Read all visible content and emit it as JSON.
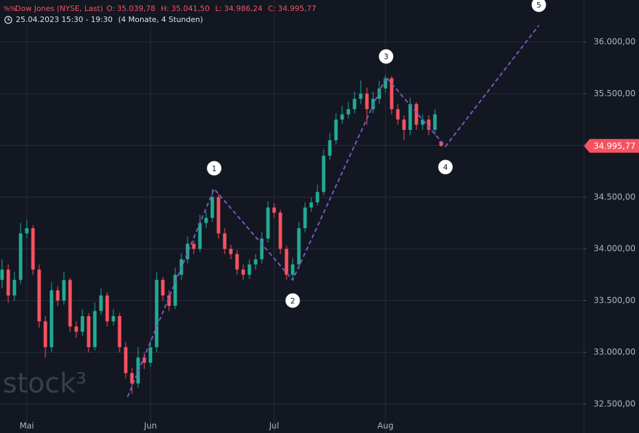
{
  "header": {
    "symbol": "Dow Jones (NYSE, Last)",
    "ohlc": [
      {
        "key": "O:",
        "value": "35.039,78"
      },
      {
        "key": "H:",
        "value": "35.041,50"
      },
      {
        "key": "L:",
        "value": "34.986,24"
      },
      {
        "key": "C:",
        "value": "34.995,77"
      }
    ],
    "date_range": "25.04.2023 15:30 - 19:30",
    "span": "(4 Monate, 4 Stunden)"
  },
  "watermark": "stock³",
  "chart_data": {
    "type": "candlestick",
    "up_color": "#22ab94",
    "down_color": "#f7525f",
    "grid": true,
    "categories": [
      null,
      null,
      null,
      null,
      "Mai",
      null,
      null,
      null,
      null,
      null,
      null,
      null,
      null,
      null,
      null,
      null,
      null,
      null,
      null,
      null,
      null,
      null,
      null,
      null,
      "Jun",
      null,
      null,
      null,
      null,
      null,
      null,
      null,
      null,
      null,
      null,
      null,
      null,
      null,
      null,
      null,
      null,
      null,
      null,
      null,
      "Jul",
      null,
      null,
      null,
      null,
      null,
      null,
      null,
      null,
      null,
      null,
      null,
      null,
      null,
      null,
      null,
      null,
      null,
      "Aug",
      null,
      null,
      null,
      null,
      null,
      null,
      null,
      null,
      null
    ],
    "open": [
      33700,
      33800,
      33550,
      33700,
      34150,
      34200,
      33800,
      33300,
      33050,
      33600,
      33500,
      33700,
      33250,
      33200,
      33350,
      33050,
      33400,
      33550,
      33300,
      33350,
      33050,
      32800,
      32700,
      32950,
      32900,
      33050,
      33700,
      33550,
      33450,
      33750,
      33900,
      34050,
      34000,
      34250,
      34300,
      34500,
      34150,
      34000,
      33950,
      33800,
      33750,
      33850,
      33900,
      34100,
      34400,
      34350,
      34000,
      33750,
      33850,
      34200,
      34400,
      34450,
      34550,
      34900,
      35050,
      35250,
      35300,
      35350,
      35450,
      35500,
      35350,
      35450,
      35550,
      35650,
      35350,
      35250,
      35150,
      35400,
      35200,
      35250,
      35150,
      35039.78
    ],
    "high": [
      33900,
      33850,
      33780,
      34250,
      34280,
      34230,
      33850,
      33350,
      33680,
      33640,
      33780,
      33720,
      33300,
      33420,
      33380,
      33480,
      33620,
      33580,
      33420,
      33380,
      33100,
      32850,
      33050,
      33000,
      33120,
      33780,
      33730,
      33600,
      33820,
      33960,
      34120,
      34080,
      34330,
      34360,
      34580,
      34530,
      34200,
      34040,
      33990,
      33850,
      33900,
      33950,
      34160,
      34460,
      34440,
      34380,
      34030,
      33910,
      34260,
      34450,
      34500,
      34620,
      34960,
      35120,
      35310,
      35380,
      35420,
      35520,
      35630,
      35560,
      35520,
      35620,
      35680,
      35670,
      35400,
      35290,
      35460,
      35420,
      35300,
      35290,
      35350,
      35041.5
    ],
    "low": [
      33620,
      33480,
      33500,
      33660,
      34100,
      33750,
      33240,
      32950,
      33000,
      33450,
      33460,
      33200,
      33140,
      33160,
      33000,
      33020,
      33360,
      33250,
      33260,
      33000,
      32750,
      32600,
      32660,
      32840,
      32860,
      33000,
      33500,
      33400,
      33420,
      33700,
      33860,
      33950,
      33970,
      34200,
      34260,
      34100,
      33950,
      33900,
      33750,
      33700,
      33710,
      33800,
      33860,
      34060,
      34300,
      33950,
      33700,
      33720,
      33810,
      34160,
      34360,
      34420,
      34520,
      34860,
      35010,
      35210,
      35260,
      35310,
      35400,
      35200,
      35310,
      35400,
      35510,
      35300,
      35200,
      35050,
      35100,
      35150,
      35150,
      35100,
      35100,
      34986.24
    ],
    "close": [
      33800,
      33550,
      33700,
      34150,
      34200,
      33800,
      33300,
      33050,
      33600,
      33500,
      33700,
      33250,
      33200,
      33350,
      33050,
      33400,
      33550,
      33300,
      33350,
      33050,
      32800,
      32700,
      32950,
      32900,
      33050,
      33700,
      33550,
      33450,
      33750,
      33900,
      34050,
      34000,
      34250,
      34300,
      34500,
      34150,
      34000,
      33950,
      33800,
      33750,
      33850,
      33900,
      34100,
      34400,
      34350,
      34000,
      33750,
      33850,
      34200,
      34400,
      34450,
      34550,
      34900,
      35050,
      35250,
      35300,
      35350,
      35450,
      35500,
      35350,
      35450,
      35550,
      35650,
      35350,
      35250,
      35150,
      35400,
      35200,
      35250,
      35150,
      35300,
      34995.77
    ],
    "ylim": [
      32221,
      36405
    ],
    "yticks": [
      {
        "value": 32500,
        "label": "32.500,00"
      },
      {
        "value": 33000,
        "label": "33.000,00"
      },
      {
        "value": 33500,
        "label": "33.500,00"
      },
      {
        "value": 34000,
        "label": "34.000,00"
      },
      {
        "value": 34500,
        "label": "34.500,00"
      },
      {
        "value": 35000,
        "label": "35.000,00"
      },
      {
        "value": 35500,
        "label": "35.500,00"
      },
      {
        "value": 36000,
        "label": "36.000,00"
      }
    ],
    "last_price": {
      "value": 34995.77,
      "label": "34.995,77"
    },
    "last_price_color": "#f7525f",
    "wave": {
      "color": "#7e57c2",
      "x": [
        20.3,
        34.3,
        47,
        62.1,
        71.7,
        86.8
      ],
      "y": [
        32570,
        34580,
        33700,
        35660,
        34990,
        36160
      ],
      "labels": [
        null,
        "1",
        "2",
        "3",
        "4",
        "5"
      ]
    }
  }
}
